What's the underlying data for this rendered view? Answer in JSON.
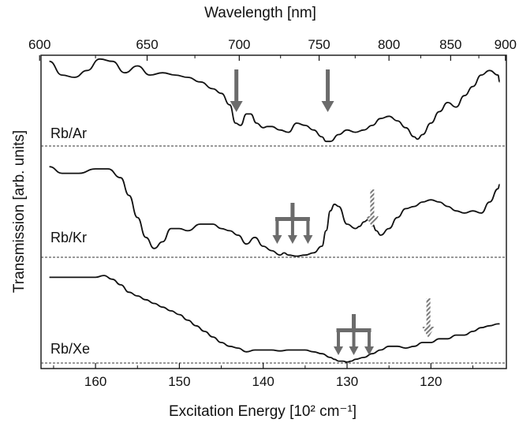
{
  "chart_data": {
    "type": "line",
    "xlabel": "Excitation Energy [10² cm⁻¹]",
    "x2label": "Wavelength [nm]",
    "ylabel": "Transmission [arb. units]",
    "xlim": [
      166.5,
      111
    ],
    "x_ticks": [
      160,
      150,
      140,
      130,
      120
    ],
    "x2_ticks": [
      600,
      650,
      700,
      750,
      800,
      850,
      900
    ],
    "grid": false,
    "series": [
      {
        "name": "Rb/Ar",
        "x": [
          165.5,
          164,
          162.5,
          161,
          159.5,
          158,
          156.5,
          155,
          153.5,
          152,
          150.5,
          149,
          147.5,
          146,
          145,
          144,
          143.3,
          142.7,
          142,
          141.5,
          140.8,
          140,
          139.5,
          139,
          138,
          137,
          136,
          135,
          134,
          133,
          132.5,
          132,
          131,
          130,
          129,
          128,
          127,
          126,
          125,
          124,
          123,
          122,
          121.6,
          121,
          120,
          119,
          118,
          117,
          116,
          115,
          114,
          113,
          112,
          111.8
        ],
        "y": [
          0.74,
          0.62,
          0.6,
          0.66,
          0.76,
          0.74,
          0.64,
          0.7,
          0.62,
          0.64,
          0.62,
          0.6,
          0.56,
          0.5,
          0.46,
          0.36,
          0.2,
          0.18,
          0.28,
          0.28,
          0.2,
          0.16,
          0.17,
          0.17,
          0.14,
          0.12,
          0.2,
          0.18,
          0.14,
          0.08,
          0.04,
          0.04,
          0.1,
          0.14,
          0.12,
          0.14,
          0.18,
          0.24,
          0.26,
          0.22,
          0.16,
          0.08,
          0.06,
          0.1,
          0.2,
          0.3,
          0.38,
          0.34,
          0.44,
          0.52,
          0.62,
          0.66,
          0.62,
          0.56
        ]
      },
      {
        "name": "Rb/Kr",
        "x": [
          165.5,
          164,
          162,
          160,
          158.5,
          157,
          156,
          155,
          154,
          153,
          152,
          151,
          150,
          149,
          147.5,
          146,
          145,
          144,
          143,
          142,
          141,
          140,
          139,
          138,
          137.5,
          137,
          136,
          135,
          134,
          133,
          132.5,
          132,
          131.5,
          131,
          130,
          129,
          128.5,
          128,
          127.5,
          127,
          126.5,
          126,
          125,
          124,
          123,
          122,
          121,
          120,
          119,
          118,
          117,
          116,
          115,
          114,
          113,
          112,
          111.8
        ],
        "y": [
          0.82,
          0.76,
          0.76,
          0.8,
          0.8,
          0.72,
          0.56,
          0.36,
          0.18,
          0.08,
          0.14,
          0.26,
          0.26,
          0.24,
          0.3,
          0.3,
          0.26,
          0.24,
          0.2,
          0.12,
          0.18,
          0.1,
          0.06,
          0.02,
          0.04,
          0.02,
          0.01,
          0.02,
          0.04,
          0.1,
          0.24,
          0.42,
          0.48,
          0.46,
          0.3,
          0.26,
          0.28,
          0.32,
          0.34,
          0.3,
          0.24,
          0.2,
          0.26,
          0.36,
          0.44,
          0.46,
          0.5,
          0.52,
          0.5,
          0.46,
          0.42,
          0.4,
          0.42,
          0.4,
          0.5,
          0.62,
          0.66
        ]
      },
      {
        "name": "Rb/Xe",
        "x": [
          165.5,
          164,
          162,
          160,
          159,
          158,
          157,
          156,
          155,
          154,
          153,
          152,
          151,
          150,
          149,
          148,
          147,
          146,
          145,
          144,
          143,
          142,
          141,
          140,
          139,
          138,
          137,
          136,
          135,
          134,
          133,
          132,
          131.5,
          131,
          130.5,
          130,
          129.5,
          129,
          128,
          127,
          126,
          125,
          124,
          123,
          122,
          121,
          120,
          119,
          118,
          117,
          116,
          115,
          114,
          113,
          112,
          111.8
        ],
        "y": [
          0.92,
          0.92,
          0.92,
          0.92,
          0.94,
          0.9,
          0.84,
          0.76,
          0.72,
          0.68,
          0.64,
          0.6,
          0.56,
          0.52,
          0.46,
          0.4,
          0.34,
          0.28,
          0.22,
          0.18,
          0.16,
          0.12,
          0.14,
          0.14,
          0.14,
          0.13,
          0.14,
          0.14,
          0.14,
          0.12,
          0.1,
          0.06,
          0.04,
          0.02,
          0.02,
          0.01,
          0.02,
          0.04,
          0.06,
          0.1,
          0.14,
          0.18,
          0.18,
          0.16,
          0.18,
          0.22,
          0.22,
          0.26,
          0.26,
          0.3,
          0.3,
          0.34,
          0.38,
          0.4,
          0.42,
          0.42
        ]
      }
    ],
    "down_arrows": [
      {
        "panel": "Rb/Ar",
        "x": 143.2,
        "style": "solid"
      },
      {
        "panel": "Rb/Ar",
        "x": 132.3,
        "style": "solid"
      },
      {
        "panel": "Rb/Kr",
        "x": 127,
        "style": "hatched"
      },
      {
        "panel": "Rb/Xe",
        "x": 120.3,
        "style": "hatched"
      }
    ],
    "triplet_arrows": [
      {
        "panel": "Rb/Kr",
        "x": 136.5
      },
      {
        "panel": "Rb/Xe",
        "x": 129.2
      }
    ],
    "colors": {
      "line": "#111111",
      "arrow": "#6b6b6b",
      "baseline": "#333333"
    }
  }
}
